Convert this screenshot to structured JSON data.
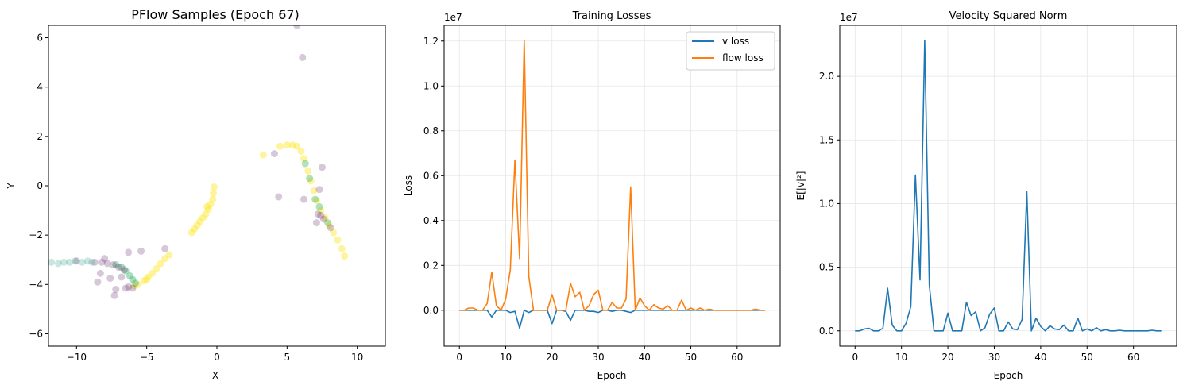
{
  "chart_data": [
    {
      "type": "scatter",
      "title": "PFlow Samples (Epoch 67)",
      "xlabel": "X",
      "ylabel": "Y",
      "xlim": [
        -12,
        12
      ],
      "ylim": [
        -6.5,
        6.5
      ],
      "xticks": [
        -10,
        -5,
        0,
        5,
        10
      ],
      "yticks": [
        -6,
        -4,
        -2,
        0,
        2,
        4,
        6
      ],
      "grid": false,
      "colormap": [
        "#440154",
        "#3b528b",
        "#21918c",
        "#5ec962",
        "#fde725"
      ],
      "clusters": [
        {
          "name": "left-arm-yellow",
          "points": [
            [
              -5.6,
              -4.0
            ],
            [
              -5.2,
              -3.85
            ],
            [
              -4.9,
              -3.7
            ],
            [
              -4.6,
              -3.55
            ],
            [
              -4.3,
              -3.35
            ],
            [
              -4.0,
              -3.15
            ],
            [
              -3.7,
              -2.95
            ],
            [
              -3.4,
              -2.8
            ],
            [
              -5.9,
              -4.05
            ],
            [
              -5.0,
              -3.8
            ]
          ],
          "color": 1.0
        },
        {
          "name": "left-arm-green",
          "points": [
            [
              -6.8,
              -3.3
            ],
            [
              -6.5,
              -3.45
            ],
            [
              -6.2,
              -3.65
            ],
            [
              -6.0,
              -3.8
            ],
            [
              -5.8,
              -3.95
            ],
            [
              -7.2,
              -3.2
            ]
          ],
          "color": 0.65
        },
        {
          "name": "left-arm-purple",
          "points": [
            [
              -8.2,
              -3.1
            ],
            [
              -7.8,
              -3.15
            ],
            [
              -7.4,
              -3.2
            ],
            [
              -7.0,
              -3.3
            ],
            [
              -6.6,
              -3.4
            ],
            [
              -6.3,
              -4.1
            ],
            [
              -6.0,
              -4.15
            ],
            [
              -6.5,
              -4.15
            ],
            [
              -7.2,
              -4.2
            ],
            [
              -7.3,
              -4.45
            ],
            [
              -8.5,
              -3.9
            ],
            [
              -8.3,
              -3.55
            ],
            [
              -8.0,
              -2.95
            ],
            [
              -6.3,
              -2.7
            ],
            [
              -5.4,
              -2.65
            ],
            [
              -3.7,
              -2.55
            ],
            [
              -6.8,
              -3.7
            ],
            [
              -7.6,
              -3.75
            ],
            [
              -8.7,
              -3.1
            ],
            [
              -10.0,
              -3.05
            ]
          ],
          "color": 0.0
        },
        {
          "name": "left-arm-faint",
          "points": [
            [
              -11.8,
              -3.1
            ],
            [
              -11.3,
              -3.15
            ],
            [
              -10.9,
              -3.1
            ],
            [
              -10.5,
              -3.1
            ],
            [
              -10.1,
              -3.05
            ],
            [
              -9.6,
              -3.1
            ],
            [
              -9.2,
              -3.05
            ],
            [
              -8.9,
              -3.1
            ]
          ],
          "color": 0.55
        },
        {
          "name": "center-yellow",
          "points": [
            [
              -0.2,
              -0.05
            ],
            [
              -0.25,
              -0.3
            ],
            [
              -0.3,
              -0.55
            ],
            [
              -0.45,
              -0.75
            ],
            [
              -0.6,
              -0.95
            ],
            [
              -0.8,
              -1.15
            ],
            [
              -1.0,
              -1.3
            ],
            [
              -1.2,
              -1.45
            ],
            [
              -1.4,
              -1.6
            ],
            [
              -1.6,
              -1.75
            ],
            [
              -1.8,
              -1.9
            ],
            [
              -0.7,
              -0.85
            ]
          ],
          "color": 1.0
        },
        {
          "name": "right-arm-yellow",
          "points": [
            [
              5.0,
              1.65
            ],
            [
              5.4,
              1.65
            ],
            [
              5.7,
              1.6
            ],
            [
              6.0,
              1.4
            ],
            [
              6.2,
              1.1
            ],
            [
              6.5,
              0.6
            ],
            [
              6.7,
              0.2
            ],
            [
              6.9,
              -0.2
            ],
            [
              7.1,
              -0.6
            ],
            [
              7.4,
              -1.0
            ],
            [
              7.7,
              -1.3
            ],
            [
              8.0,
              -1.6
            ],
            [
              8.3,
              -1.9
            ],
            [
              8.6,
              -2.2
            ],
            [
              8.9,
              -2.55
            ],
            [
              9.1,
              -2.85
            ],
            [
              3.3,
              1.25
            ],
            [
              4.5,
              1.6
            ]
          ],
          "color": 1.0
        },
        {
          "name": "right-arm-green",
          "points": [
            [
              6.3,
              0.9
            ],
            [
              6.6,
              0.3
            ],
            [
              7.0,
              -0.55
            ],
            [
              7.3,
              -0.85
            ],
            [
              7.9,
              -1.5
            ]
          ],
          "color": 0.7
        },
        {
          "name": "right-arm-purple",
          "points": [
            [
              4.1,
              1.3
            ],
            [
              4.4,
              -0.45
            ],
            [
              6.2,
              -0.55
            ],
            [
              7.2,
              -1.15
            ],
            [
              7.4,
              -1.2
            ],
            [
              7.6,
              -1.35
            ],
            [
              7.5,
              0.75
            ],
            [
              7.3,
              -0.15
            ],
            [
              8.1,
              -1.7
            ],
            [
              5.7,
              6.5
            ],
            [
              6.1,
              5.2
            ],
            [
              7.1,
              -1.5
            ]
          ],
          "color": 0.0
        }
      ]
    },
    {
      "type": "line",
      "title": "Training Losses",
      "xlabel": "Epoch",
      "ylabel": "Loss",
      "scale_label": "1e7",
      "xlim": [
        -3.3,
        69.3
      ],
      "ylim": [
        -0.16,
        1.27
      ],
      "xticks": [
        0,
        10,
        20,
        30,
        40,
        50,
        60
      ],
      "yticks": [
        0.0,
        0.2,
        0.4,
        0.6,
        0.8,
        1.0,
        1.2
      ],
      "ytick_labels": [
        "0.0",
        "0.2",
        "0.4",
        "0.6",
        "0.8",
        "1.0",
        "1.2"
      ],
      "grid": true,
      "legend": "top-right",
      "series": [
        {
          "name": "v loss",
          "color": "#1f77b4",
          "x": [
            0,
            1,
            2,
            3,
            4,
            5,
            6,
            7,
            8,
            9,
            10,
            11,
            12,
            13,
            14,
            15,
            16,
            17,
            18,
            19,
            20,
            21,
            22,
            23,
            24,
            25,
            26,
            27,
            28,
            29,
            30,
            31,
            32,
            33,
            34,
            35,
            36,
            37,
            38,
            39,
            40,
            41,
            42,
            43,
            44,
            45,
            46,
            47,
            48,
            49,
            50,
            51,
            52,
            53,
            54,
            55,
            56,
            57,
            58,
            59,
            60,
            61,
            62,
            63,
            64,
            65,
            66
          ],
          "values": [
            0,
            0,
            0,
            0,
            0,
            0,
            0,
            -0.03,
            0,
            0,
            0,
            -0.01,
            -0.005,
            -0.08,
            0,
            -0.01,
            0,
            0,
            0,
            0,
            -0.06,
            0,
            0,
            -0.005,
            -0.045,
            0,
            0,
            0,
            -0.005,
            -0.005,
            -0.01,
            0,
            0,
            -0.005,
            0,
            0,
            -0.005,
            -0.01,
            0,
            0,
            0,
            0,
            0,
            0,
            0,
            0,
            0,
            0,
            0,
            0,
            0,
            0,
            0,
            0,
            0,
            0,
            0,
            0,
            0,
            0,
            0,
            0,
            0,
            0,
            0,
            0,
            0
          ]
        },
        {
          "name": "flow loss",
          "color": "#ff7f0e",
          "x": [
            0,
            1,
            2,
            3,
            4,
            5,
            6,
            7,
            8,
            9,
            10,
            11,
            12,
            13,
            14,
            15,
            16,
            17,
            18,
            19,
            20,
            21,
            22,
            23,
            24,
            25,
            26,
            27,
            28,
            29,
            30,
            31,
            32,
            33,
            34,
            35,
            36,
            37,
            38,
            39,
            40,
            41,
            42,
            43,
            44,
            45,
            46,
            47,
            48,
            49,
            50,
            51,
            52,
            53,
            54,
            55,
            56,
            57,
            58,
            59,
            60,
            61,
            62,
            63,
            64,
            65,
            66
          ],
          "values": [
            0,
            0,
            0.01,
            0.01,
            0,
            0,
            0.03,
            0.17,
            0.02,
            0,
            0.05,
            0.18,
            0.67,
            0.23,
            1.205,
            0.15,
            0,
            0,
            0,
            0,
            0.07,
            0,
            0,
            0,
            0.12,
            0.06,
            0.08,
            0,
            0.02,
            0.07,
            0.09,
            0,
            0,
            0.035,
            0.01,
            0.01,
            0.05,
            0.55,
            0,
            0.055,
            0.02,
            0,
            0.025,
            0.01,
            0.005,
            0.02,
            0,
            0,
            0.045,
            0,
            0.01,
            0,
            0.01,
            0,
            0.005,
            0,
            0,
            0,
            0,
            0,
            0,
            0,
            0,
            0,
            0.005,
            0,
            0
          ]
        }
      ]
    },
    {
      "type": "line",
      "title": "Velocity Squared Norm",
      "xlabel": "Epoch",
      "ylabel": "E[|v|²]",
      "scale_label": "1e7",
      "xlim": [
        -3.3,
        69.3
      ],
      "ylim": [
        -0.12,
        2.4
      ],
      "xticks": [
        0,
        10,
        20,
        30,
        40,
        50,
        60
      ],
      "yticks": [
        0.0,
        0.5,
        1.0,
        1.5,
        2.0
      ],
      "ytick_labels": [
        "0.0",
        "0.5",
        "1.0",
        "1.5",
        "2.0"
      ],
      "grid": true,
      "series": [
        {
          "name": "",
          "color": "#1f77b4",
          "x": [
            0,
            1,
            2,
            3,
            4,
            5,
            6,
            7,
            8,
            9,
            10,
            11,
            12,
            13,
            14,
            15,
            16,
            17,
            18,
            19,
            20,
            21,
            22,
            23,
            24,
            25,
            26,
            27,
            28,
            29,
            30,
            31,
            32,
            33,
            34,
            35,
            36,
            37,
            38,
            39,
            40,
            41,
            42,
            43,
            44,
            45,
            46,
            47,
            48,
            49,
            50,
            51,
            52,
            53,
            54,
            55,
            56,
            57,
            58,
            59,
            60,
            61,
            62,
            63,
            64,
            65,
            66
          ],
          "values": [
            0,
            0,
            0.015,
            0.02,
            0,
            0,
            0.02,
            0.335,
            0.045,
            0,
            0,
            0.06,
            0.19,
            1.225,
            0.4,
            2.28,
            0.36,
            0,
            0,
            0,
            0.14,
            0,
            0,
            0,
            0.225,
            0.12,
            0.15,
            0,
            0.025,
            0.13,
            0.18,
            0,
            0,
            0.07,
            0.015,
            0.01,
            0.09,
            1.095,
            0,
            0.1,
            0.035,
            0,
            0.04,
            0.015,
            0.01,
            0.045,
            0,
            0,
            0.1,
            0,
            0.015,
            0,
            0.025,
            0,
            0.01,
            0,
            0,
            0.005,
            0,
            0,
            0,
            0,
            0,
            0,
            0.005,
            0,
            0
          ]
        }
      ]
    }
  ]
}
